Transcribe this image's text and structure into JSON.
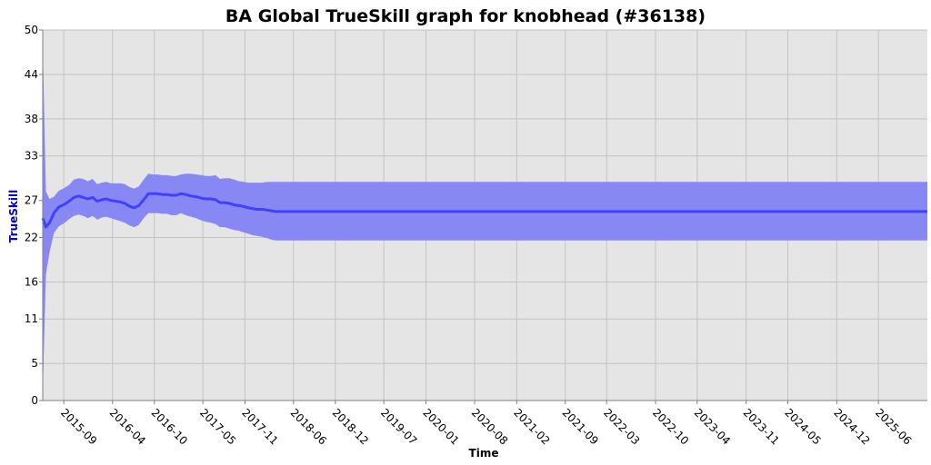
{
  "chart_data": {
    "type": "line",
    "title": "BA Global TrueSkill graph for knobhead (#36138)",
    "xlabel": "Time",
    "ylabel": "TrueSkill",
    "ylim": [
      0,
      50
    ],
    "yticks": [
      0,
      5,
      11,
      16,
      22,
      27,
      33,
      38,
      44,
      50
    ],
    "xlim": [
      "2015-06-01",
      "2026-01-01"
    ],
    "xticks": [
      "2015-09",
      "2016-04",
      "2016-10",
      "2017-05",
      "2017-11",
      "2018-06",
      "2018-12",
      "2019-07",
      "2020-01",
      "2020-08",
      "2021-02",
      "2021-09",
      "2022-03",
      "2022-10",
      "2023-04",
      "2023-11",
      "2024-05",
      "2024-12",
      "2025-06"
    ],
    "grid": true,
    "colors": {
      "background": "#e5e5e5",
      "grid": "#c3c3c3",
      "line": "#4040ff",
      "band": "#8888f4",
      "axis_label": "#0000cc"
    },
    "series": [
      {
        "x": [
          "2015-06-01",
          "2015-06-15",
          "2015-07-01",
          "2015-07-20",
          "2015-08-10",
          "2015-09-05",
          "2015-09-25",
          "2015-10-15",
          "2015-11-05",
          "2015-11-25",
          "2015-12-15",
          "2016-01-05",
          "2016-01-25",
          "2016-02-15",
          "2016-03-05",
          "2016-03-25",
          "2016-04-15",
          "2016-05-05",
          "2016-05-25",
          "2016-06-15",
          "2016-07-05",
          "2016-07-25",
          "2016-08-15",
          "2016-09-05",
          "2016-09-25",
          "2016-10-15",
          "2016-11-05",
          "2016-11-25",
          "2016-12-15",
          "2017-01-05",
          "2017-01-25",
          "2017-02-15",
          "2017-03-10",
          "2017-04-01",
          "2017-04-25",
          "2017-05-15",
          "2017-06-05",
          "2017-06-25",
          "2017-07-15",
          "2017-08-05",
          "2017-08-25",
          "2017-09-15",
          "2017-10-05",
          "2017-10-25",
          "2017-11-15",
          "2017-12-05",
          "2017-12-25",
          "2018-01-15",
          "2018-02-05",
          "2018-02-25",
          "2018-03-15",
          "2018-04-05",
          "2018-04-25",
          "2018-05-15",
          "2018-06-05",
          "2018-06-25",
          "2018-07-15",
          "2018-08-05",
          "2018-08-25",
          "2018-09-15",
          "2018-10-05",
          "2018-10-25",
          "2018-11-15",
          "2018-12-05",
          "2018-12-25",
          "2019-01-15",
          "2019-02-05",
          "2019-02-25",
          "2019-03-15",
          "2019-04-05",
          "2019-04-25",
          "2026-01-01"
        ],
        "mu": [
          24.6,
          23.4,
          24.0,
          25.3,
          26.1,
          26.5,
          26.9,
          27.4,
          27.6,
          27.4,
          27.2,
          27.4,
          26.9,
          27.1,
          27.2,
          27.0,
          26.9,
          26.8,
          26.6,
          26.2,
          26.0,
          26.3,
          27.1,
          27.9,
          27.9,
          27.9,
          27.8,
          27.8,
          27.7,
          27.7,
          27.9,
          27.8,
          27.6,
          27.5,
          27.3,
          27.2,
          27.2,
          27.1,
          26.7,
          26.7,
          26.6,
          26.4,
          26.3,
          26.2,
          26.0,
          25.9,
          25.8,
          25.8,
          25.7,
          25.6,
          25.5,
          25.5,
          25.5,
          25.5,
          25.5,
          25.5,
          25.5,
          25.5,
          25.5,
          25.5,
          25.5,
          25.5,
          25.5,
          25.5,
          25.5,
          25.5,
          25.5,
          25.5,
          25.5,
          25.5,
          25.5,
          25.5
        ],
        "upper": [
          48.0,
          28.2,
          27.2,
          27.5,
          28.3,
          28.7,
          29.1,
          29.8,
          30.0,
          29.9,
          29.6,
          29.9,
          29.2,
          29.4,
          29.5,
          29.3,
          29.3,
          29.3,
          29.2,
          28.8,
          28.6,
          28.9,
          29.8,
          30.6,
          30.5,
          30.5,
          30.4,
          30.4,
          30.3,
          30.3,
          30.5,
          30.6,
          30.6,
          30.5,
          30.4,
          30.3,
          30.3,
          30.4,
          29.9,
          30.0,
          30.0,
          29.8,
          29.6,
          29.5,
          29.4,
          29.4,
          29.4,
          29.4,
          29.5,
          29.5,
          29.5,
          29.5,
          29.5,
          29.5,
          29.5,
          29.5,
          29.5,
          29.5,
          29.5,
          29.5,
          29.5,
          29.5,
          29.5,
          29.5,
          29.5,
          29.5,
          29.5,
          29.5,
          29.5,
          29.5,
          29.5,
          29.5
        ],
        "lower": [
          1.0,
          17.0,
          20.0,
          22.6,
          23.5,
          24.0,
          24.5,
          24.9,
          25.1,
          24.9,
          24.6,
          24.9,
          24.4,
          24.7,
          24.8,
          24.6,
          24.4,
          24.2,
          24.0,
          23.6,
          23.4,
          23.7,
          24.6,
          25.3,
          25.3,
          25.3,
          25.2,
          25.2,
          25.0,
          25.0,
          25.3,
          25.0,
          24.8,
          24.6,
          24.3,
          24.1,
          24.0,
          23.8,
          23.4,
          23.4,
          23.2,
          23.0,
          22.9,
          22.7,
          22.5,
          22.3,
          22.2,
          22.1,
          21.9,
          21.7,
          21.6,
          21.6,
          21.6,
          21.6,
          21.6,
          21.6,
          21.6,
          21.6,
          21.6,
          21.6,
          21.6,
          21.6,
          21.6,
          21.6,
          21.6,
          21.6,
          21.6,
          21.6,
          21.6,
          21.6,
          21.6,
          21.6
        ]
      }
    ]
  }
}
